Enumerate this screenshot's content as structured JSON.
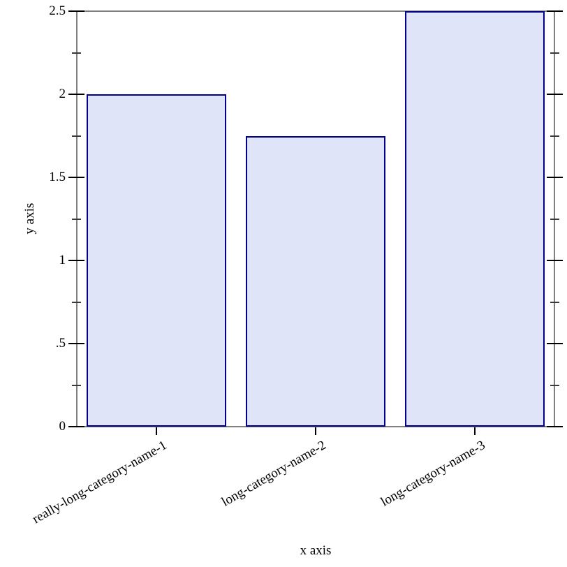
{
  "chart_data": {
    "type": "bar",
    "title": "",
    "xlabel": "x axis",
    "ylabel": "y axis",
    "categories": [
      "really-long-category-name-1",
      "long-category-name-2",
      "long-category-name-3"
    ],
    "values": [
      2,
      1.75,
      2.5
    ],
    "ylim": [
      0,
      2.5
    ],
    "y_major_ticks": [
      0,
      0.5,
      1,
      1.5,
      2,
      2.5
    ],
    "y_major_tick_labels": [
      "0",
      ".5",
      "1",
      "1.5",
      "2",
      "2.5"
    ],
    "y_minor_ticks": [
      0.25,
      0.75,
      1.25,
      1.75,
      2.25
    ],
    "grid": false,
    "legend": "none",
    "category_label_rotation_deg": -30,
    "bar_fill_color": "#e0e4f9",
    "bar_stroke_color": "#00008b",
    "axis_line_color": "#7f7f7f",
    "tick_color": "#000000",
    "text_color": "#000000",
    "background_color": "#ffffff"
  }
}
